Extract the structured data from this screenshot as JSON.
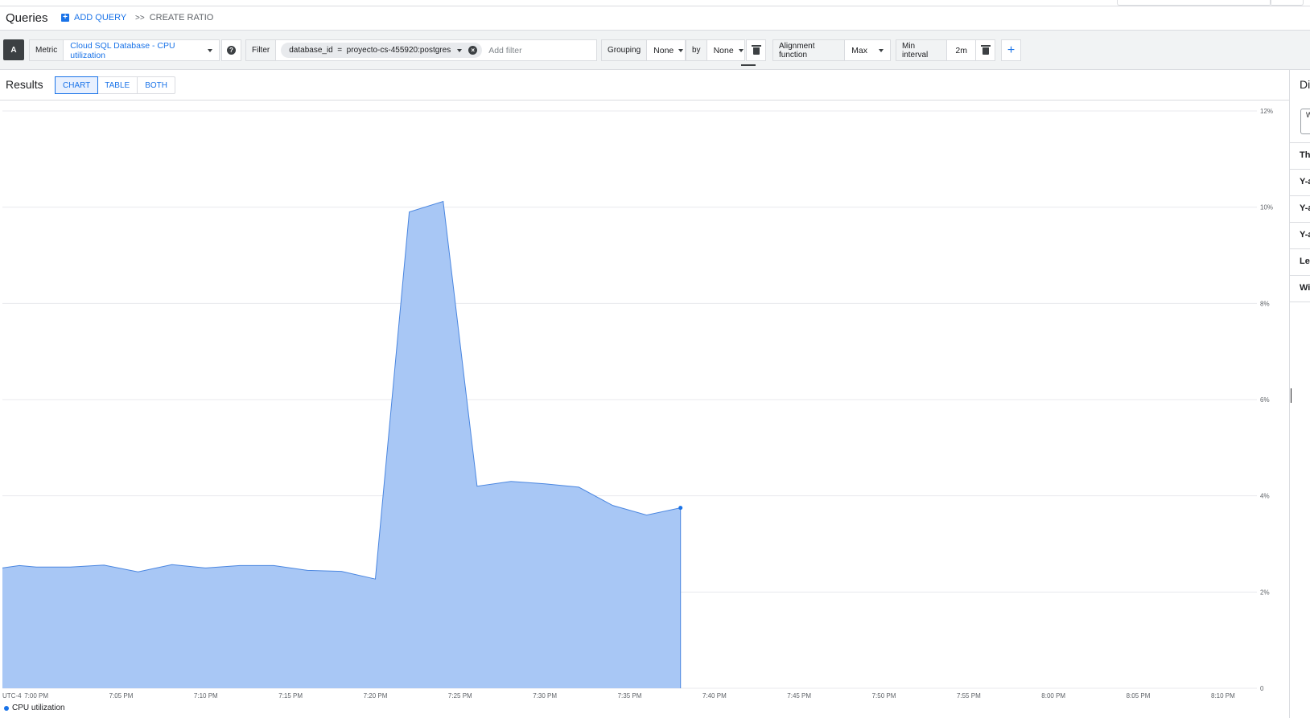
{
  "queries": {
    "title": "Queries",
    "add_query_label": "ADD QUERY",
    "create_ratio_label": "CREATE RATIO"
  },
  "query": {
    "letter": "A",
    "metric_label": "Metric",
    "metric_value": "Cloud SQL Database - CPU utilization",
    "filter_label": "Filter",
    "filter_chip": "database_id  =  proyecto-cs-455920:postgres",
    "add_filter_placeholder": "Add filter",
    "grouping_label": "Grouping",
    "grouping_value": "None",
    "by_label": "by",
    "by_value": "None",
    "alignment_label": "Alignment function",
    "alignment_value": "Max",
    "min_interval_label": "Min interval",
    "min_interval_value": "2m"
  },
  "results": {
    "title": "Results",
    "tabs": [
      "CHART",
      "TABLE",
      "BOTH"
    ],
    "active_tab": "CHART"
  },
  "right_panel": {
    "title": "Di",
    "box_text": "W",
    "rows": [
      "Th",
      "Y-a",
      "Y-a",
      "Y-a",
      "Le",
      "Wi"
    ]
  },
  "colors": {
    "accent": "#1a73e8",
    "area_fill": "#a8c7f5",
    "area_line": "#4a86e0"
  },
  "chart_data": {
    "type": "area",
    "timezone_label": "UTC-4",
    "y_ticks": [
      "0",
      "2%",
      "4%",
      "6%",
      "8%",
      "10%",
      "12%"
    ],
    "ylim": [
      0,
      12
    ],
    "x_ticks": [
      "7:00 PM",
      "7:05 PM",
      "7:10 PM",
      "7:15 PM",
      "7:20 PM",
      "7:25 PM",
      "7:30 PM",
      "7:35 PM",
      "7:40 PM",
      "7:45 PM",
      "7:50 PM",
      "7:55 PM",
      "8:00 PM",
      "8:05 PM",
      "8:10 PM"
    ],
    "xlim": [
      "6:58 PM",
      "8:12 PM"
    ],
    "series": [
      {
        "name": "CPU utilization",
        "x": [
          "6:58 PM",
          "6:59 PM",
          "7:00 PM",
          "7:02 PM",
          "7:04 PM",
          "7:06 PM",
          "7:08 PM",
          "7:10 PM",
          "7:12 PM",
          "7:14 PM",
          "7:16 PM",
          "7:18 PM",
          "7:20 PM",
          "7:22 PM",
          "7:24 PM",
          "7:26 PM",
          "7:28 PM",
          "7:30 PM",
          "7:32 PM",
          "7:34 PM",
          "7:36 PM",
          "7:38 PM"
        ],
        "values": [
          2.5,
          2.55,
          2.52,
          2.52,
          2.56,
          2.42,
          2.57,
          2.5,
          2.55,
          2.55,
          2.45,
          2.43,
          2.27,
          9.9,
          10.12,
          4.2,
          4.3,
          4.25,
          4.18,
          3.8,
          3.6,
          3.75
        ]
      }
    ]
  }
}
